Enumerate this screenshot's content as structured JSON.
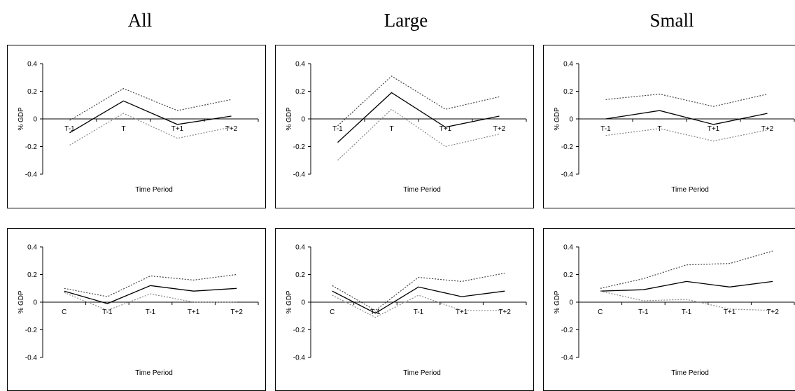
{
  "column_titles": [
    "All",
    "Large",
    "Small"
  ],
  "chart_data": [
    {
      "type": "line",
      "group": "All",
      "x": [
        "T-1",
        "T",
        "T+1",
        "T+2"
      ],
      "series": [
        {
          "role": "estimate",
          "values": [
            -0.1,
            0.13,
            -0.04,
            0.02
          ]
        },
        {
          "role": "upper",
          "values": [
            -0.01,
            0.22,
            0.06,
            0.14
          ]
        },
        {
          "role": "lower",
          "values": [
            -0.19,
            0.04,
            -0.14,
            -0.06
          ]
        }
      ],
      "xlabel": "Time Period",
      "ylabel": "% GDP",
      "ylim": [
        -0.4,
        0.4
      ],
      "yticks": [
        "0.4",
        "0.2",
        "0",
        "-0.2",
        "-0.4"
      ]
    },
    {
      "type": "line",
      "group": "Large",
      "x": [
        "T-1",
        "T",
        "T+1",
        "T+2"
      ],
      "series": [
        {
          "role": "estimate",
          "values": [
            -0.17,
            0.19,
            -0.06,
            0.02
          ]
        },
        {
          "role": "upper",
          "values": [
            -0.05,
            0.31,
            0.07,
            0.16
          ]
        },
        {
          "role": "lower",
          "values": [
            -0.3,
            0.07,
            -0.2,
            -0.11
          ]
        }
      ],
      "xlabel": "Time Period",
      "ylabel": "% GDP",
      "ylim": [
        -0.4,
        0.4
      ],
      "yticks": [
        "0.4",
        "0.2",
        "0",
        "-0.2",
        "-0.4"
      ]
    },
    {
      "type": "line",
      "group": "Small",
      "x": [
        "T-1",
        "T",
        "T+1",
        "T+2"
      ],
      "series": [
        {
          "role": "estimate",
          "values": [
            0.0,
            0.06,
            -0.04,
            0.04
          ]
        },
        {
          "role": "upper",
          "values": [
            0.14,
            0.18,
            0.09,
            0.18
          ]
        },
        {
          "role": "lower",
          "values": [
            -0.12,
            -0.07,
            -0.16,
            -0.08
          ]
        }
      ],
      "xlabel": "Time Period",
      "ylabel": "% GDP",
      "ylim": [
        -0.4,
        0.4
      ],
      "yticks": [
        "0.4",
        "0.2",
        "0",
        "-0.2",
        "-0.4"
      ]
    },
    {
      "type": "line",
      "group": "All",
      "x": [
        "C",
        "T-1",
        "T-1",
        "T+1",
        "T+2"
      ],
      "series": [
        {
          "role": "estimate",
          "values": [
            0.08,
            -0.01,
            0.12,
            0.08,
            0.1
          ]
        },
        {
          "role": "upper",
          "values": [
            0.1,
            0.04,
            0.19,
            0.16,
            0.2
          ]
        },
        {
          "role": "lower",
          "values": [
            0.07,
            -0.06,
            0.06,
            0.0,
            0.0
          ]
        }
      ],
      "xlabel": "Time Period",
      "ylabel": "% GDP",
      "ylim": [
        -0.4,
        0.4
      ],
      "yticks": [
        "0.4",
        "0.2",
        "0",
        "-0.2",
        "-0.4"
      ]
    },
    {
      "type": "line",
      "group": "Large",
      "x": [
        "C",
        "T-1",
        "T-1",
        "T+1",
        "T+2"
      ],
      "series": [
        {
          "role": "estimate",
          "values": [
            0.08,
            -0.08,
            0.11,
            0.04,
            0.08
          ]
        },
        {
          "role": "upper",
          "values": [
            0.12,
            -0.06,
            0.18,
            0.15,
            0.21
          ]
        },
        {
          "role": "lower",
          "values": [
            0.05,
            -0.11,
            0.05,
            -0.06,
            -0.06
          ]
        }
      ],
      "xlabel": "Time Period",
      "ylabel": "% GDP",
      "ylim": [
        -0.4,
        0.4
      ],
      "yticks": [
        "0.4",
        "0.2",
        "0",
        "-0.2",
        "-0.4"
      ]
    },
    {
      "type": "line",
      "group": "Small",
      "x": [
        "C",
        "T-1",
        "T-1",
        "T+1",
        "T+2"
      ],
      "series": [
        {
          "role": "estimate",
          "values": [
            0.08,
            0.09,
            0.15,
            0.11,
            0.15
          ]
        },
        {
          "role": "upper",
          "values": [
            0.1,
            0.17,
            0.27,
            0.28,
            0.37
          ]
        },
        {
          "role": "lower",
          "values": [
            0.08,
            0.01,
            0.02,
            -0.05,
            -0.06
          ]
        }
      ],
      "xlabel": "Time Period",
      "ylabel": "% GDP",
      "ylim": [
        -0.4,
        0.4
      ],
      "yticks": [
        "0.4",
        "0.2",
        "0",
        "-0.2",
        "-0.4"
      ]
    }
  ]
}
